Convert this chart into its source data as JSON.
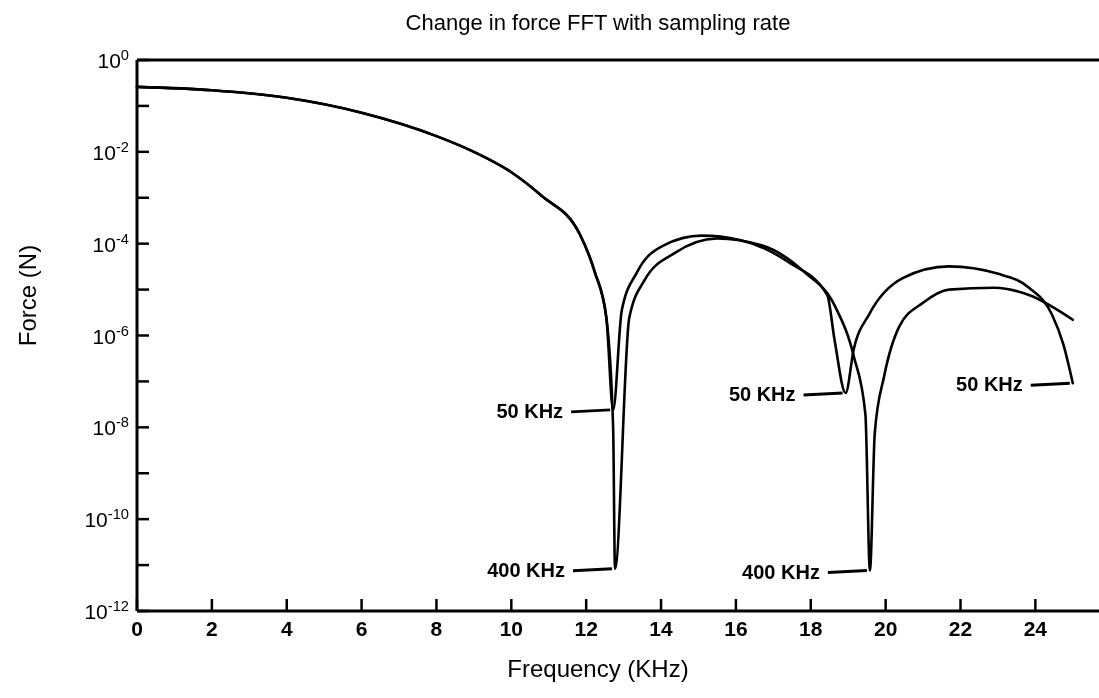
{
  "chart_data": {
    "type": "line",
    "title": "Change in force FFT with sampling rate",
    "xlabel": "Frequency (KHz)",
    "ylabel": "Force (N)",
    "log": "y",
    "grid": false,
    "marker": "none",
    "line_style": "solid",
    "xlim": [
      0,
      25.7
    ],
    "xticks": [
      0,
      2,
      4,
      6,
      8,
      10,
      12,
      14,
      16,
      18,
      20,
      22,
      24
    ],
    "ylim": [
      1e-12,
      1
    ],
    "yticks": [
      {
        "value": 1,
        "label": "10$^{0}$"
      },
      {
        "value": 0.1,
        "label": null
      },
      {
        "value": 0.01,
        "label": "10$^{-2}$"
      },
      {
        "value": 0.001,
        "label": null
      },
      {
        "value": 0.0001,
        "label": "10$^{-4}$"
      },
      {
        "value": 1e-05,
        "label": null
      },
      {
        "value": 1e-06,
        "label": "10$^{-6}$"
      },
      {
        "value": 1e-07,
        "label": null
      },
      {
        "value": 1e-08,
        "label": "10$^{-8}$"
      },
      {
        "value": 1e-09,
        "label": null
      },
      {
        "value": 1e-10,
        "label": "10$^{-10}$"
      },
      {
        "value": 1e-11,
        "label": null
      },
      {
        "value": 1e-12,
        "label": "10$^{-12}$"
      }
    ],
    "series": [
      {
        "color": "#000000",
        "x": [
          0,
          2,
          4,
          6,
          8,
          9,
          10,
          10.81,
          11.83,
          12.23,
          12.54,
          12.72,
          12.95,
          13.36,
          14.06,
          15.08,
          16.1,
          17.42,
          18.44,
          18.64,
          18.93,
          19.15,
          19.56,
          20.47,
          21.69,
          23.01,
          23.83,
          24.44,
          24.75,
          25.0
        ],
        "values": [
          0.26,
          0.22,
          0.15,
          0.071,
          0.022,
          0.01,
          0.0036,
          0.0011,
          0.00016,
          2.4e-05,
          2.4e-06,
          2.4e-08,
          3.5e-06,
          2.4e-05,
          9.1e-05,
          0.00015,
          0.00012,
          3.9e-05,
          7.6e-06,
          7.6e-07,
          5.6e-08,
          5.1e-07,
          2.9e-06,
          1.8e-05,
          3.2e-05,
          2.2e-05,
          1.1e-05,
          2.9e-06,
          6.3e-07,
          9.1e-08
        ]
      },
      {
        "color": "#000000",
        "x": [
          0,
          2,
          4,
          6,
          8,
          9,
          10,
          10.81,
          11.83,
          12.23,
          12.54,
          12.72,
          12.77,
          13.15,
          13.56,
          14.37,
          15.49,
          16.71,
          17.83,
          18.65,
          19.15,
          19.46,
          19.58,
          19.71,
          19.96,
          20.37,
          20.99,
          21.69,
          22.91,
          23.83,
          25.0
        ],
        "values": [
          0.26,
          0.22,
          0.15,
          0.071,
          0.022,
          0.01,
          0.0036,
          0.0011,
          0.00016,
          2.4e-05,
          2.4e-06,
          1e-08,
          8.3e-12,
          2.4e-06,
          1.6e-05,
          6.3e-05,
          0.00013,
          9.1e-05,
          2.4e-05,
          4.3e-06,
          3.5e-07,
          1.9e-08,
          7.6e-12,
          7.6e-09,
          1.3e-07,
          1.6e-06,
          5.1e-06,
          1e-05,
          1.1e-05,
          7.6e-06,
          2.2e-06
        ]
      }
    ],
    "annotations": [
      {
        "text": "50 KHz",
        "x": 12.72,
        "y": 2.4e-08
      },
      {
        "text": "50 KHz",
        "x": 18.93,
        "y": 5.6e-08
      },
      {
        "text": "50 KHz",
        "x": 25.0,
        "y": 9.1e-08
      },
      {
        "text": "400 KHz",
        "x": 12.77,
        "y": 8.3e-12
      },
      {
        "text": "400 KHz",
        "x": 19.58,
        "y": 7.6e-12
      }
    ]
  }
}
